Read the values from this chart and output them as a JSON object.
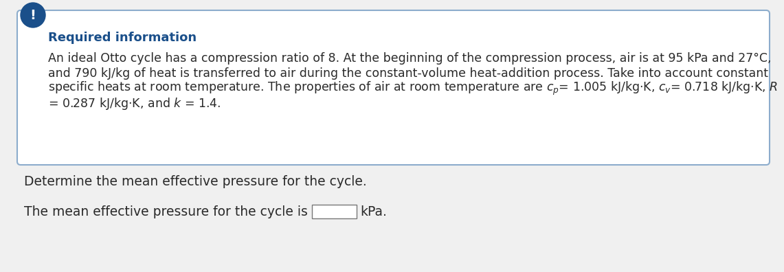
{
  "background_color": "#f0f0f0",
  "box_bg_color": "#ffffff",
  "box_border_color": "#8caccc",
  "icon_bg_color": "#1a4f8a",
  "icon_text": "!",
  "icon_text_color": "#ffffff",
  "required_info_label": "Required information",
  "required_info_color": "#1a4f8a",
  "body_text_color": "#2a2a2a",
  "para1": "An ideal Otto cycle has a compression ratio of 8. At the beginning of the compression process, air is at 95 kPa and 27°C,",
  "para2": "and 790 kJ/kg of heat is transferred to air during the constant-volume heat-addition process. Take into account constant",
  "para3_start": "specific heats at room temperature. The properties of air at room temperature are ",
  "para3_mid": "= 1.005 kJ/kg·K, ",
  "para3_mid2": "= 0.718 kJ/kg·K, ",
  "para4": "= 0.287 kJ/kg·K, and ",
  "question_text": "Determine the mean effective pressure for the cycle.",
  "answer_prefix": "The mean effective pressure for the cycle is",
  "answer_suffix": "kPa.",
  "font_size_body": 12.5,
  "font_size_label": 13.0,
  "font_size_question": 13.5
}
